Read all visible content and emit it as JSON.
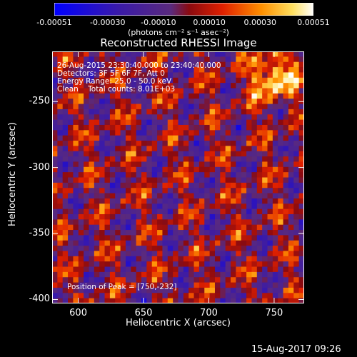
{
  "colorbar": {
    "ticks": [
      "-0.00051",
      "-0.00030",
      "-0.00010",
      "0.00010",
      "0.00030",
      "0.00051"
    ],
    "unit": "(photons cm⁻² s⁻¹ asec⁻²)",
    "range": [
      -0.00051,
      0.00051
    ],
    "colors": [
      "#0000ff",
      "#3a1aa8",
      "#5a2a7e",
      "#a01010",
      "#ff4000",
      "#ffb000",
      "#ffffff"
    ]
  },
  "chart_data": {
    "type": "heatmap",
    "title": "Reconstructed RHESSI Image",
    "xlabel": "Heliocentric X (arcsec)",
    "ylabel": "Heliocentric Y (arcsec)",
    "xlim": [
      580,
      773
    ],
    "ylim": [
      -403,
      -212
    ],
    "xticks": [
      600,
      650,
      700,
      750
    ],
    "yticks": [
      -250,
      -300,
      -350,
      -400
    ],
    "annotations": {
      "line1": "26-Aug-2015 23:30:40.000 to 23:40:40.000",
      "line2": "Detectors: 3F 5F 6F 7F, Att 0",
      "line3": "Energy Range: 25.0 - 50.0 keV",
      "line4": "Clean    Total counts: 8.01E+03",
      "position": "Position of Peak = [750,-232]"
    },
    "peak": [
      750,
      -232
    ]
  },
  "footer": {
    "date": "15-Aug-2017 09:26"
  }
}
